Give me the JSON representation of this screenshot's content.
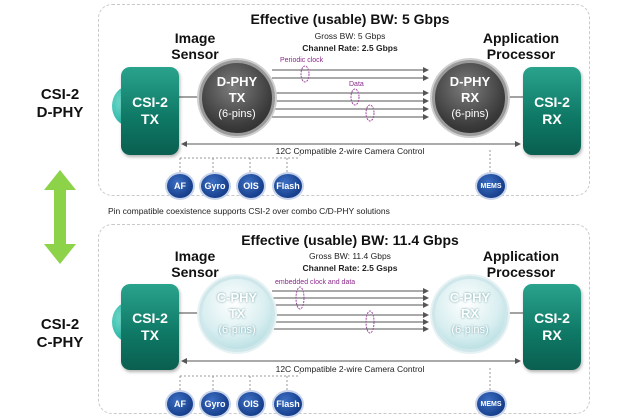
{
  "left_labels": {
    "dphy": [
      "CSI-2",
      "D-PHY"
    ],
    "cphy": [
      "CSI-2",
      "C-PHY"
    ]
  },
  "note": "Pin compatible coexistence supports CSI-2 over combo C/D-PHY solutions",
  "dphy": {
    "title": "Effective (usable) BW: 5 Gbps",
    "gross": "Gross BW: 5 Gbps",
    "channel_rate": "Channel Rate: 2.5 Gbps",
    "image_sensor": [
      "Image",
      "Sensor"
    ],
    "app_processor": [
      "Application",
      "Processor"
    ],
    "tx_box": [
      "CSI-2",
      "TX"
    ],
    "rx_box": [
      "CSI-2",
      "RX"
    ],
    "phy_tx": [
      "D-PHY",
      "TX",
      "(6-pins)"
    ],
    "phy_rx": [
      "D-PHY",
      "RX",
      "(6-pins)"
    ],
    "clock_label": "Periodic clock",
    "data_label": "Data",
    "control_label": "12C Compatible 2-wire Camera Control",
    "peripherals": [
      "AF",
      "Gyro",
      "OIS",
      "Flash"
    ],
    "mems": "MEMS"
  },
  "cphy": {
    "title": "Effective (usable) BW: 11.4 Gbps",
    "gross": "Gross BW: 11.4 Gbps",
    "channel_rate": "Channel Rate: 2.5 Gsps",
    "image_sensor": [
      "Image",
      "Sensor"
    ],
    "app_processor": [
      "Application",
      "Processor"
    ],
    "tx_box": [
      "CSI-2",
      "TX"
    ],
    "rx_box": [
      "CSI-2",
      "RX"
    ],
    "phy_tx": [
      "C-PHY",
      "TX",
      "(6-pins)"
    ],
    "phy_rx": [
      "C-PHY",
      "RX",
      "(6-pins)"
    ],
    "clock_label": "embedded clock and data",
    "control_label": "12C Compatible 2-wire Camera Control",
    "peripherals": [
      "AF",
      "Gyro",
      "OIS",
      "Flash"
    ],
    "mems": "MEMS"
  },
  "colors": {
    "csi_box": "#0f7a67",
    "lens": "#2ab7a6",
    "pill": "#163f8c",
    "arrow_green": "#8cd34a",
    "label_purple": "#8a2a8a"
  }
}
